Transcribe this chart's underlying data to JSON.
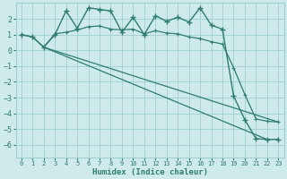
{
  "background_color": "#ceeaea",
  "grid_color": "#9fcfcf",
  "line_color": "#2e7d6e",
  "xlabel": "Humidex (Indice chaleur)",
  "xlim": [
    -0.5,
    23.5
  ],
  "ylim": [
    -6.8,
    3.0
  ],
  "yticks": [
    -6,
    -5,
    -4,
    -3,
    -2,
    -1,
    0,
    1,
    2
  ],
  "xticks": [
    0,
    1,
    2,
    3,
    4,
    5,
    6,
    7,
    8,
    9,
    10,
    11,
    12,
    13,
    14,
    15,
    16,
    17,
    18,
    19,
    20,
    21,
    22,
    23
  ],
  "series1_x": [
    0,
    1,
    2,
    3,
    4,
    5,
    6,
    7,
    8,
    9,
    10,
    11,
    12,
    13,
    14,
    15,
    16,
    17,
    18,
    19,
    20,
    21,
    22,
    23
  ],
  "series1_y": [
    1.0,
    0.85,
    0.2,
    1.0,
    2.5,
    1.4,
    2.7,
    2.6,
    2.5,
    1.15,
    2.1,
    1.0,
    2.2,
    1.85,
    2.1,
    1.8,
    2.7,
    1.6,
    1.35,
    -2.9,
    -4.4,
    -5.6,
    -5.65,
    -5.65
  ],
  "series2_x": [
    0,
    1,
    2,
    3,
    4,
    5,
    6,
    7,
    8,
    9,
    10,
    11,
    12,
    13,
    14,
    15,
    16,
    17,
    18,
    19,
    20,
    21,
    22,
    23
  ],
  "series2_y": [
    1.0,
    0.85,
    0.2,
    1.05,
    1.15,
    1.3,
    1.5,
    1.55,
    1.35,
    1.3,
    1.35,
    1.05,
    1.25,
    1.1,
    1.05,
    0.85,
    0.75,
    0.55,
    0.4,
    -1.1,
    -2.8,
    -4.35,
    -4.5,
    -4.55
  ],
  "series3_x": [
    2,
    22
  ],
  "series3_y": [
    0.2,
    -5.65
  ],
  "series4_x": [
    2,
    23
  ],
  "series4_y": [
    0.2,
    -4.55
  ]
}
